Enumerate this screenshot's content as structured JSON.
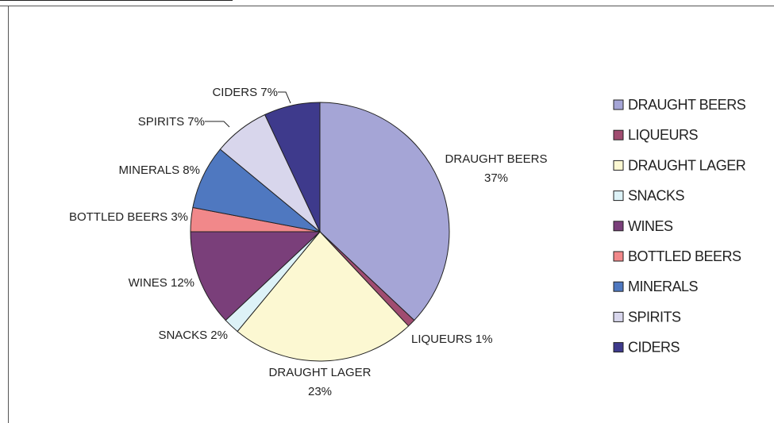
{
  "chart_data": {
    "type": "pie",
    "title": "",
    "categories": [
      "DRAUGHT BEERS",
      "LIQUEURS",
      "DRAUGHT LAGER",
      "SNACKS",
      "WINES",
      "BOTTLED BEERS",
      "MINERALS",
      "SPIRITS",
      "CIDERS"
    ],
    "values": [
      37,
      1,
      23,
      2,
      12,
      3,
      8,
      7,
      7
    ],
    "colors": [
      "#A5A5D6",
      "#A04C70",
      "#FCF8D2",
      "#DDF2F7",
      "#7A3F7A",
      "#F1888A",
      "#4F78C0",
      "#D8D6EC",
      "#3E3A8C"
    ],
    "labels": [
      {
        "name": "DRAUGHT BEERS",
        "value": "37%"
      },
      {
        "name": "LIQUEURS",
        "value": "1%"
      },
      {
        "name": "DRAUGHT LAGER",
        "value": "23%"
      },
      {
        "name": "SNACKS",
        "value": "2%"
      },
      {
        "name": "WINES",
        "value": "12%"
      },
      {
        "name": "BOTTLED BEERS",
        "value": "3%"
      },
      {
        "name": "MINERALS",
        "value": "8%"
      },
      {
        "name": "SPIRITS",
        "value": "7%"
      },
      {
        "name": "CIDERS",
        "value": "7%"
      }
    ],
    "legend": {
      "position": "right",
      "entries": [
        "DRAUGHT BEERS",
        "LIQUEURS",
        "DRAUGHT LAGER",
        "SNACKS",
        "WINES",
        "BOTTLED BEERS",
        "MINERALS",
        "SPIRITS",
        "CIDERS"
      ]
    }
  }
}
